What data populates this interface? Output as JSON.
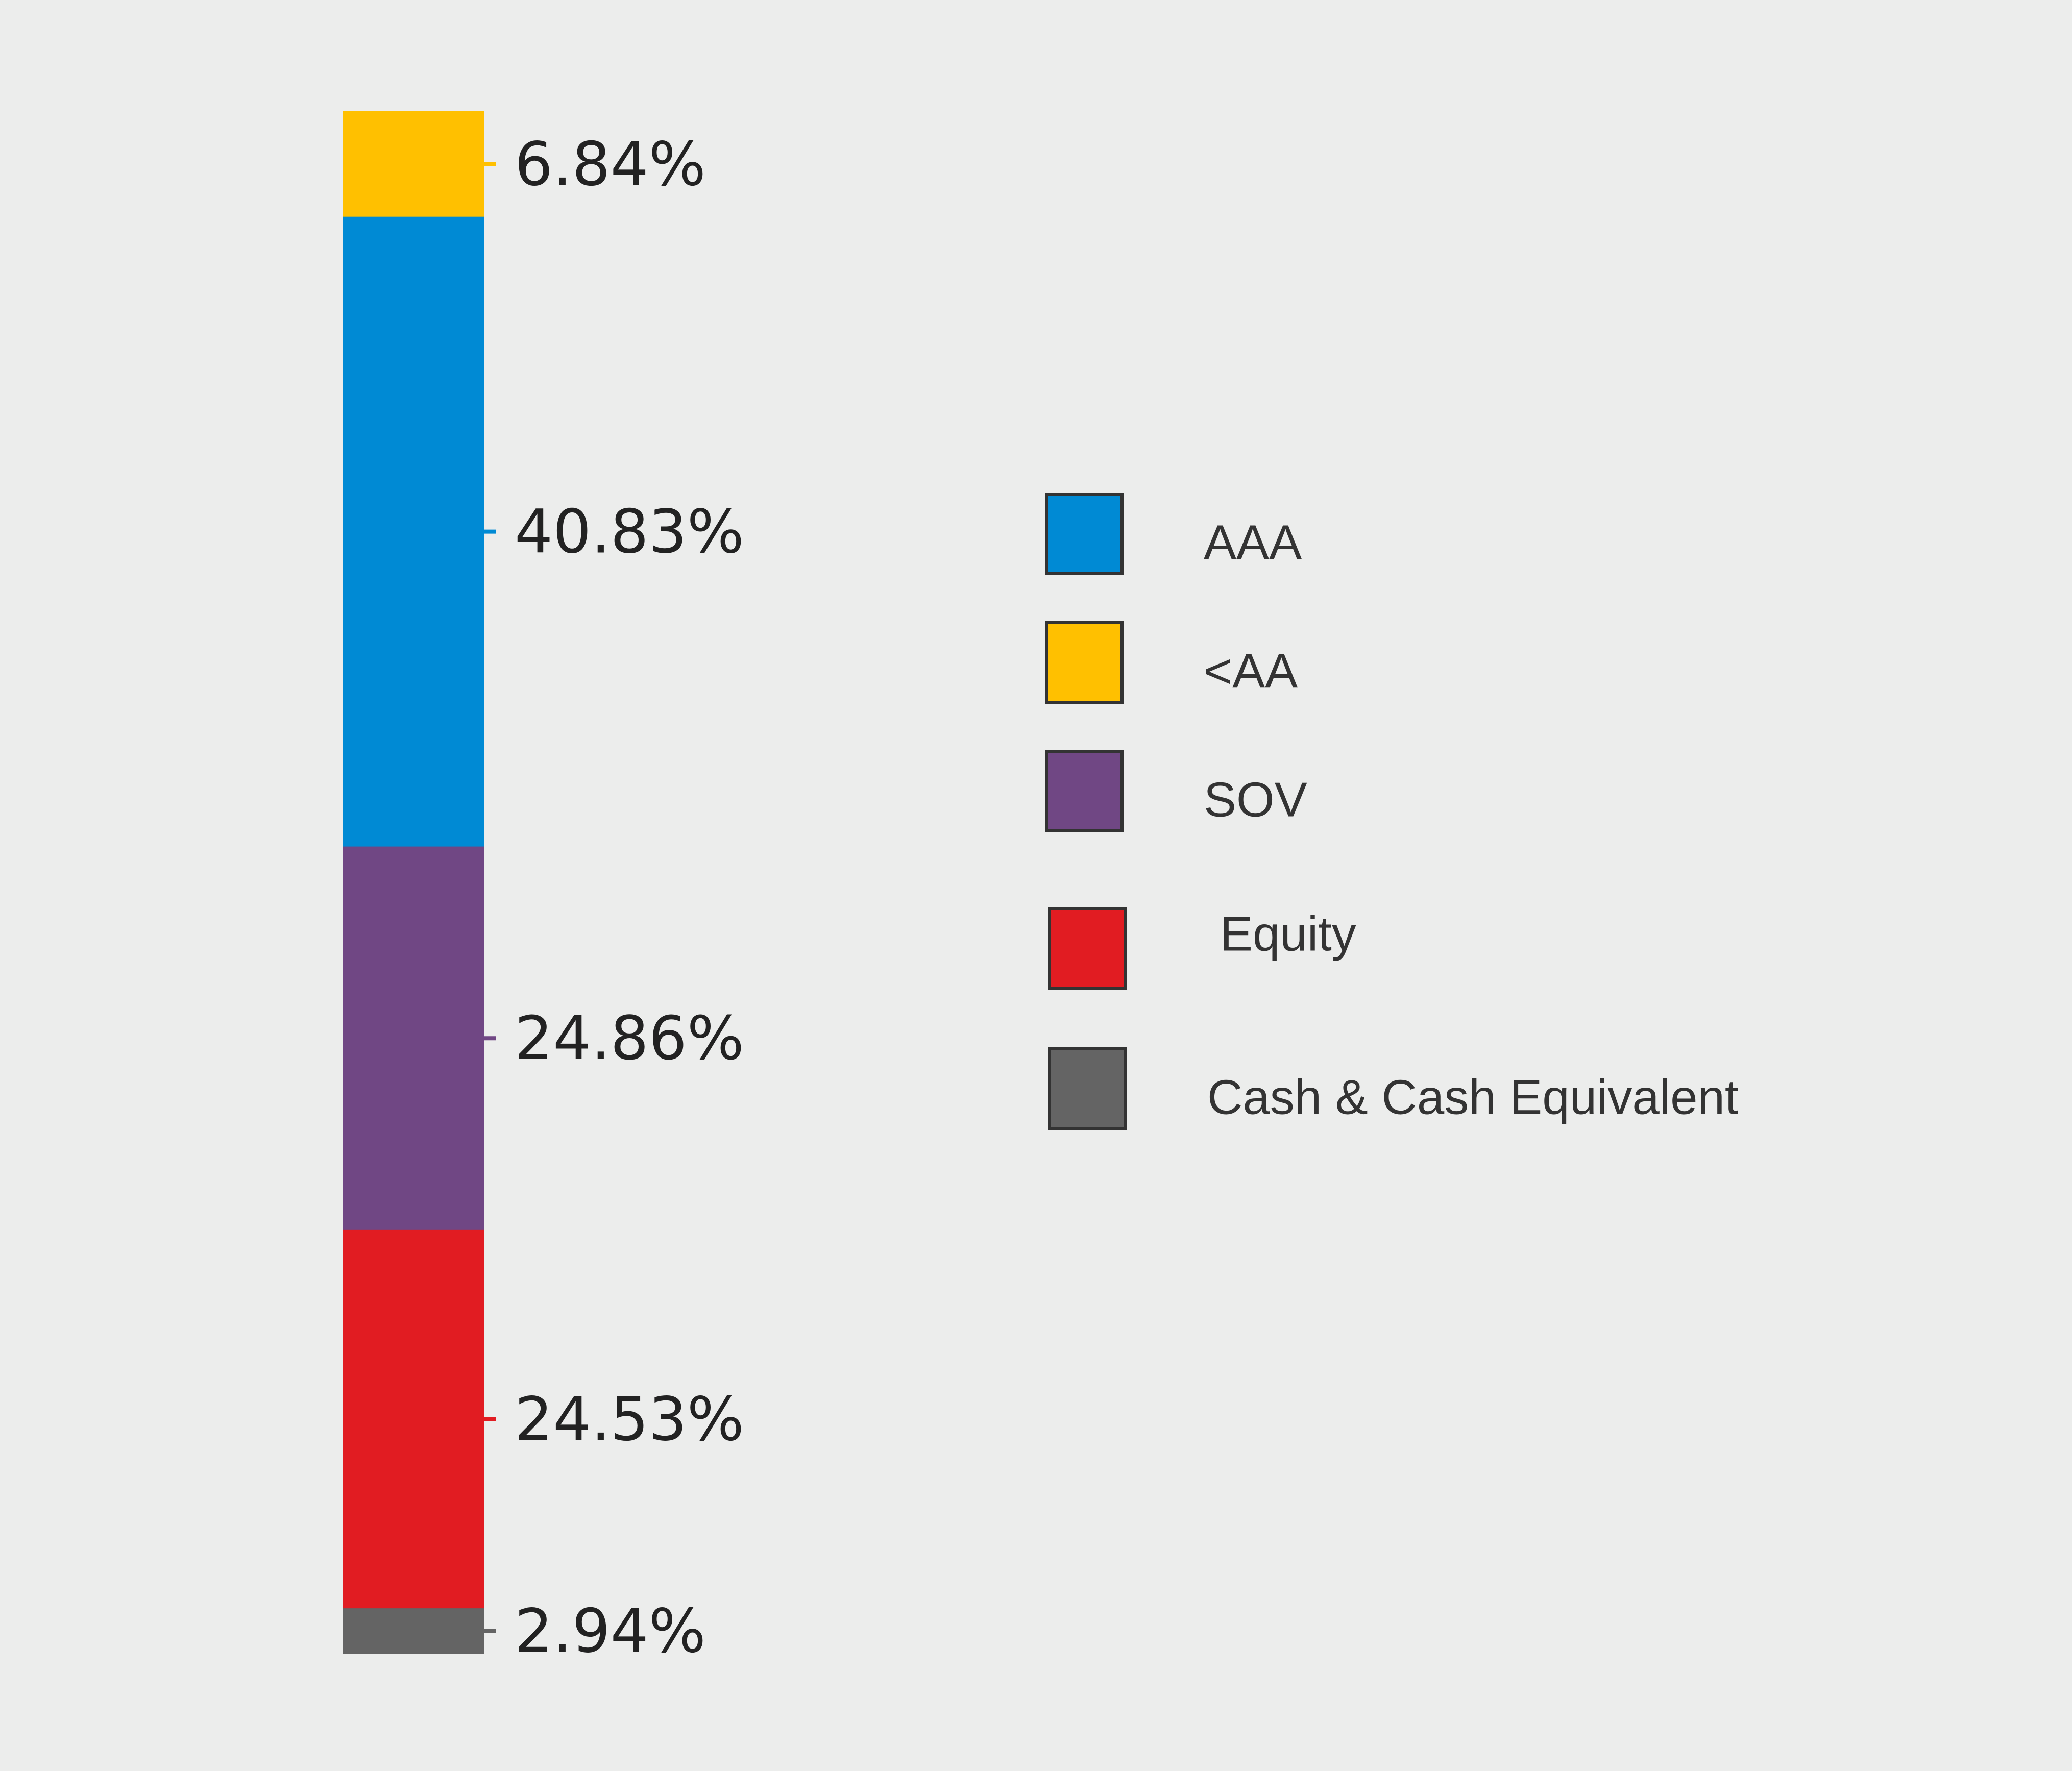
{
  "chart_data": {
    "type": "bar",
    "stacked": true,
    "orientation": "vertical",
    "series": [
      {
        "name": "<AA",
        "value": 6.84,
        "label": "6.84%",
        "color": "#ffc000"
      },
      {
        "name": "AAA",
        "value": 40.83,
        "label": "40.83%",
        "color": "#008ad4"
      },
      {
        "name": "SOV",
        "value": 24.86,
        "label": "24.86%",
        "color": "#704784"
      },
      {
        "name": "Equity",
        "value": 24.53,
        "label": "24.53%",
        "color": "#e11c22"
      },
      {
        "name": "Cash & Cash Equivalent",
        "value": 2.94,
        "label": "2.94%",
        "color": "#646464"
      }
    ],
    "legend": {
      "placement": "right",
      "items": [
        {
          "label": "AAA",
          "color": "#008ad4"
        },
        {
          "label": "<AA",
          "color": "#ffc000"
        },
        {
          "label": "SOV",
          "color": "#704784"
        },
        {
          "label": "Equity",
          "color": "#e11c22"
        },
        {
          "label": "Cash & Cash Equivalent",
          "color": "#646464"
        }
      ]
    },
    "grid": false
  }
}
